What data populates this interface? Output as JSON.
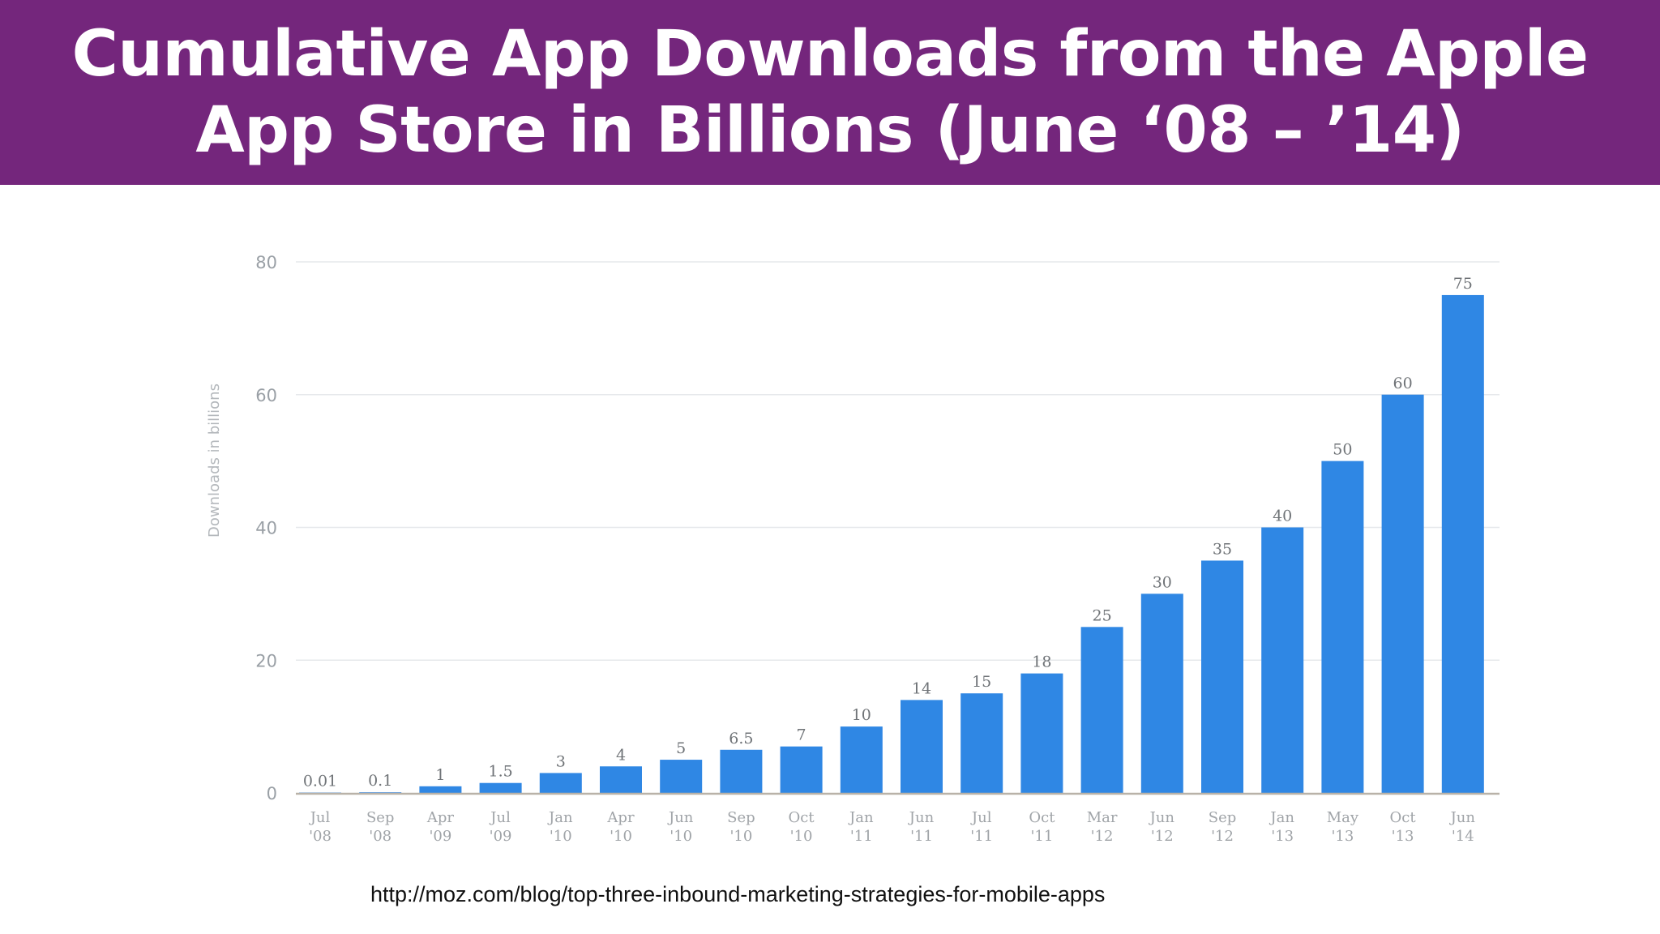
{
  "slide": {
    "title_line1": "Cumulative App Downloads from the Apple",
    "title_line2": "App Store in Billions (June ‘08 – ’14)",
    "source_url": "http://moz.com/blog/top-three-inbound-marketing-strategies-for-mobile-apps"
  },
  "colors": {
    "banner": "#74267c",
    "bar": "#2f87e4",
    "grid": "#e6e8eb"
  },
  "chart_data": {
    "type": "bar",
    "title": "",
    "xlabel": "",
    "ylabel": "Downloads in billions",
    "ylim": [
      0,
      80
    ],
    "yticks": [
      0,
      20,
      40,
      60,
      80
    ],
    "grid": true,
    "categories": [
      {
        "month": "Jul",
        "year": "'08"
      },
      {
        "month": "Sep",
        "year": "'08"
      },
      {
        "month": "Apr",
        "year": "'09"
      },
      {
        "month": "Jul",
        "year": "'09"
      },
      {
        "month": "Jan",
        "year": "'10"
      },
      {
        "month": "Apr",
        "year": "'10"
      },
      {
        "month": "Jun",
        "year": "'10"
      },
      {
        "month": "Sep",
        "year": "'10"
      },
      {
        "month": "Oct",
        "year": "'10"
      },
      {
        "month": "Jan",
        "year": "'11"
      },
      {
        "month": "Jun",
        "year": "'11"
      },
      {
        "month": "Jul",
        "year": "'11"
      },
      {
        "month": "Oct",
        "year": "'11"
      },
      {
        "month": "Mar",
        "year": "'12"
      },
      {
        "month": "Jun",
        "year": "'12"
      },
      {
        "month": "Sep",
        "year": "'12"
      },
      {
        "month": "Jan",
        "year": "'13"
      },
      {
        "month": "May",
        "year": "'13"
      },
      {
        "month": "Oct",
        "year": "'13"
      },
      {
        "month": "Jun",
        "year": "'14"
      }
    ],
    "values": [
      0.01,
      0.1,
      1,
      1.5,
      3,
      4,
      5,
      6.5,
      7,
      10,
      14,
      15,
      18,
      25,
      30,
      35,
      40,
      50,
      60,
      75
    ],
    "value_labels": [
      "0.01",
      "0.1",
      "1",
      "1.5",
      "3",
      "4",
      "5",
      "6.5",
      "7",
      "10",
      "14",
      "15",
      "18",
      "25",
      "30",
      "35",
      "40",
      "50",
      "60",
      "75"
    ]
  }
}
